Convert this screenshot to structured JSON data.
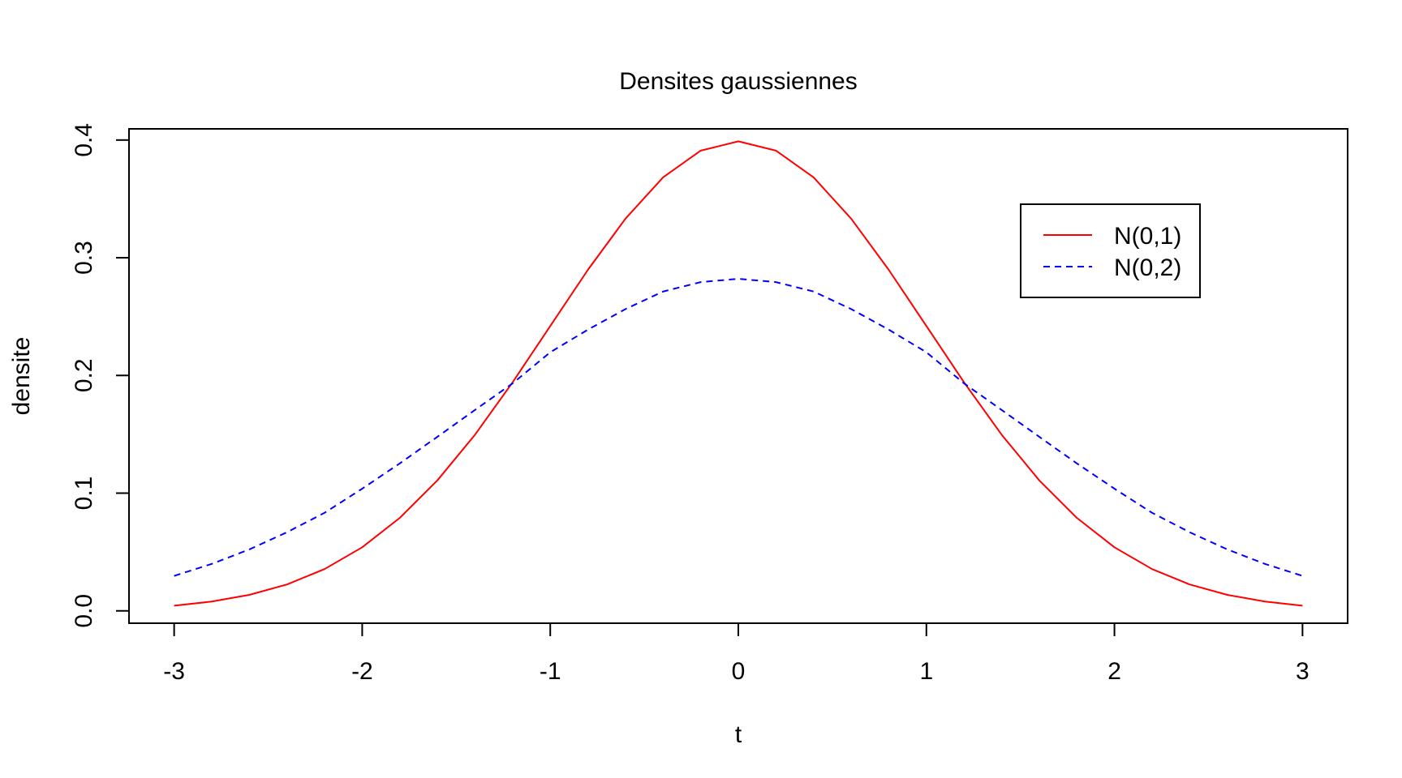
{
  "chart_data": {
    "type": "line",
    "title": "Densites gaussiennes",
    "xlabel": "t",
    "ylabel": "densite",
    "xlim": [
      -3.24,
      3.24
    ],
    "ylim": [
      -0.0105,
      0.4095
    ],
    "x_ticks": [
      -3,
      -2,
      -1,
      0,
      1,
      2,
      3
    ],
    "x_tick_labels": [
      "-3",
      "-2",
      "-1",
      "0",
      "1",
      "2",
      "3"
    ],
    "y_ticks": [
      0.0,
      0.1,
      0.2,
      0.3,
      0.4
    ],
    "y_tick_labels": [
      "0.0",
      "0.1",
      "0.2",
      "0.3",
      "0.4"
    ],
    "grid": false,
    "legend_position": "top-right",
    "x": [
      -3,
      -2.8,
      -2.6,
      -2.4,
      -2.2,
      -2,
      -1.8,
      -1.6,
      -1.4,
      -1.2,
      -1,
      -0.8,
      -0.6,
      -0.4,
      -0.2,
      0,
      0.2,
      0.4,
      0.6,
      0.8,
      1,
      1.2,
      1.4,
      1.6,
      1.8,
      2,
      2.2,
      2.4,
      2.6,
      2.8,
      3
    ],
    "series": [
      {
        "name": "N(0,1)",
        "color": "#ff0000",
        "line_style": "solid",
        "values": [
          0.0044,
          0.0079,
          0.0136,
          0.0224,
          0.0355,
          0.054,
          0.079,
          0.1109,
          0.1497,
          0.1942,
          0.242,
          0.2897,
          0.3332,
          0.3683,
          0.391,
          0.3989,
          0.391,
          0.3683,
          0.3332,
          0.2897,
          0.242,
          0.1942,
          0.1497,
          0.1109,
          0.079,
          0.054,
          0.0355,
          0.0224,
          0.0136,
          0.0079,
          0.0044
        ]
      },
      {
        "name": "N(0,2)",
        "color": "#0000ff",
        "line_style": "dashed",
        "values": [
          0.0297,
          0.0399,
          0.0522,
          0.0668,
          0.0833,
          0.1038,
          0.1253,
          0.1479,
          0.1707,
          0.1933,
          0.2197,
          0.2389,
          0.2564,
          0.2713,
          0.2793,
          0.2821,
          0.2793,
          0.2713,
          0.2564,
          0.2389,
          0.2197,
          0.1933,
          0.1707,
          0.1479,
          0.1253,
          0.1038,
          0.0833,
          0.0668,
          0.0522,
          0.0399,
          0.0297
        ]
      }
    ]
  }
}
